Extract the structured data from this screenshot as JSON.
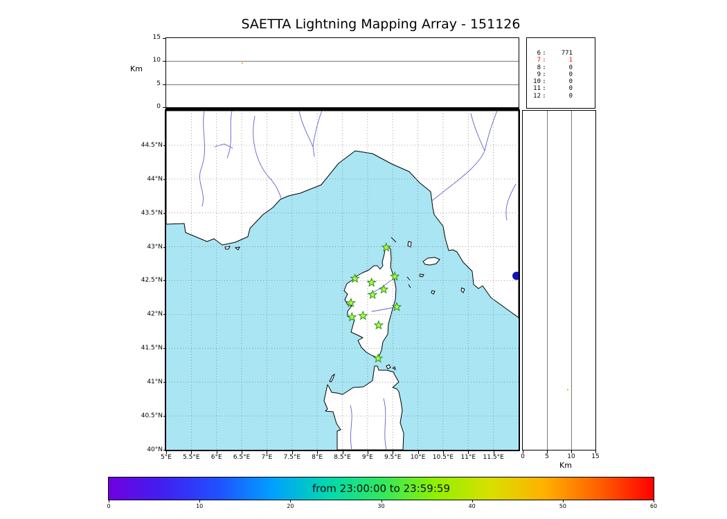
{
  "title": "SAETTA Lightning Mapping Array - 151126",
  "chart_data": {
    "type": "scatter",
    "panels": {
      "height_time": {
        "ylabel": "Km",
        "alt_range": [
          0,
          15
        ],
        "alt_ticks": [
          0,
          5,
          10,
          15
        ],
        "gridlines_at": [
          5,
          10
        ],
        "points": [
          {
            "frac_x": 0.214,
            "alt": 9.75,
            "color": "#ff8800"
          }
        ]
      },
      "stations_histogram": {
        "rows": [
          {
            "stations": "6",
            "count": "771",
            "color": "#000000"
          },
          {
            "stations": "7",
            "count": "1",
            "color": "#ff0000"
          },
          {
            "stations": "8",
            "count": "0",
            "color": "#000000"
          },
          {
            "stations": "9",
            "count": "0",
            "color": "#000000"
          },
          {
            "stations": "10",
            "count": "0",
            "color": "#000000"
          },
          {
            "stations": "11",
            "count": "0",
            "color": "#000000"
          },
          {
            "stations": "12",
            "count": "0",
            "color": "#000000"
          }
        ]
      },
      "map": {
        "lon_range": [
          5,
          12
        ],
        "lat_range": [
          40,
          45.01
        ],
        "lon_ticks": [
          {
            "value": 5,
            "label": "5°E"
          },
          {
            "value": 5.5,
            "label": "5.5°E"
          },
          {
            "value": 6,
            "label": "6°E"
          },
          {
            "value": 6.5,
            "label": "6.5°E"
          },
          {
            "value": 7,
            "label": "7°E"
          },
          {
            "value": 7.5,
            "label": "7.5°E"
          },
          {
            "value": 8,
            "label": "8°E"
          },
          {
            "value": 8.5,
            "label": "8.5°E"
          },
          {
            "value": 9,
            "label": "9°E"
          },
          {
            "value": 9.5,
            "label": "9.5°E"
          },
          {
            "value": 10,
            "label": "10°E"
          },
          {
            "value": 10.5,
            "label": "10.5°E"
          },
          {
            "value": 11,
            "label": "11°E"
          },
          {
            "value": 11.5,
            "label": "11.5°E"
          }
        ],
        "lat_ticks": [
          {
            "value": 40,
            "label": "40°N"
          },
          {
            "value": 40.5,
            "label": "40.5°N"
          },
          {
            "value": 41,
            "label": "41°N"
          },
          {
            "value": 41.5,
            "label": "41.5°N"
          },
          {
            "value": 42,
            "label": "42°N"
          },
          {
            "value": 42.5,
            "label": "42.5°N"
          },
          {
            "value": 43,
            "label": "43°N"
          },
          {
            "value": 43.5,
            "label": "43.5°N"
          },
          {
            "value": 44,
            "label": "44°N"
          },
          {
            "value": 44.5,
            "label": "44.5°N"
          }
        ],
        "sea_color": "#a9e5f3",
        "land_color": "#ffffff",
        "coast_color": "#000000",
        "river_color": "#5f5fd0",
        "grid_color": "#888888",
        "station_marker": {
          "shape": "star",
          "fill": "#adff2f",
          "stroke": "#2e8b2e"
        },
        "stations": [
          {
            "lon": 9.37,
            "lat": 42.99
          },
          {
            "lon": 8.75,
            "lat": 42.53
          },
          {
            "lon": 9.08,
            "lat": 42.47
          },
          {
            "lon": 9.54,
            "lat": 42.56
          },
          {
            "lon": 9.32,
            "lat": 42.37
          },
          {
            "lon": 9.1,
            "lat": 42.29
          },
          {
            "lon": 8.67,
            "lat": 42.17
          },
          {
            "lon": 8.91,
            "lat": 41.98
          },
          {
            "lon": 8.69,
            "lat": 41.96
          },
          {
            "lon": 9.58,
            "lat": 42.11
          },
          {
            "lon": 9.22,
            "lat": 41.84
          },
          {
            "lon": 9.21,
            "lat": 41.35
          }
        ],
        "source_points": [
          {
            "lon": 11.96,
            "lat": 42.57,
            "r": 6,
            "color": "#1111b8"
          }
        ]
      },
      "height_lat": {
        "xlabel": "Km",
        "alt_range": [
          0,
          15
        ],
        "alt_ticks": [
          0,
          5,
          10,
          15
        ],
        "gridlines_at": [
          5,
          10
        ],
        "points": [
          {
            "alt": 9.1,
            "frac_y": 0.82,
            "color": "#ff8800"
          }
        ]
      }
    },
    "colorbar": {
      "label": "from 23:00:00 to 23:59:59",
      "range": [
        0,
        60
      ],
      "ticks": [
        0,
        10,
        20,
        30,
        40,
        50,
        60
      ],
      "stops": [
        {
          "pos": 0.0,
          "color": "#7000e0"
        },
        {
          "pos": 0.1,
          "color": "#4020f0"
        },
        {
          "pos": 0.2,
          "color": "#2050ff"
        },
        {
          "pos": 0.3,
          "color": "#00a0ff"
        },
        {
          "pos": 0.4,
          "color": "#00d8b0"
        },
        {
          "pos": 0.5,
          "color": "#30e860"
        },
        {
          "pos": 0.6,
          "color": "#90f000"
        },
        {
          "pos": 0.7,
          "color": "#d8e000"
        },
        {
          "pos": 0.8,
          "color": "#ffb000"
        },
        {
          "pos": 0.9,
          "color": "#ff6000"
        },
        {
          "pos": 1.0,
          "color": "#ff0000"
        }
      ]
    }
  }
}
